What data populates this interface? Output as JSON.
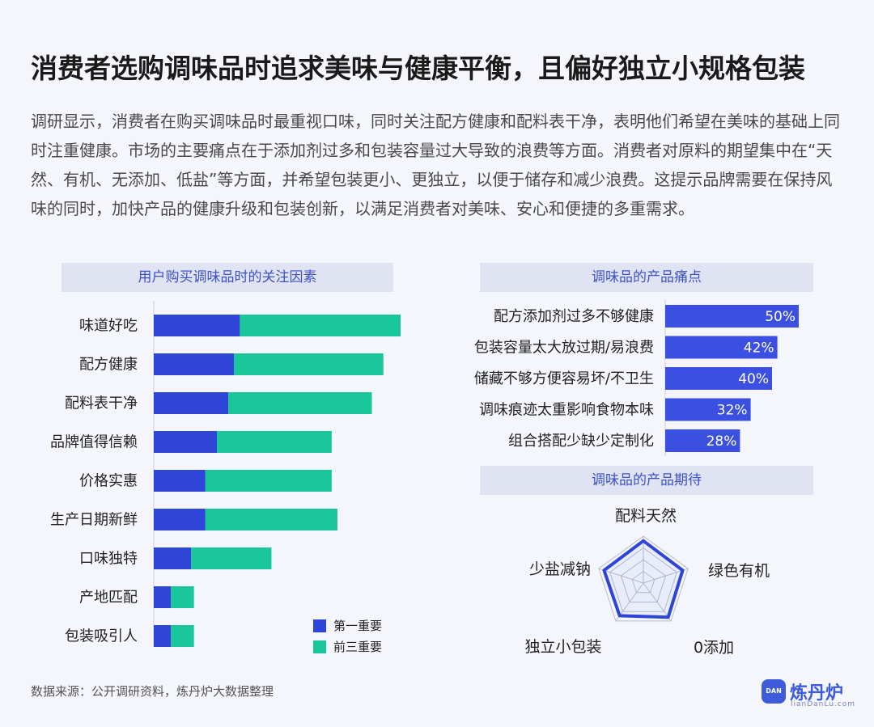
{
  "title": "消费者选购调味品时追求美味与健康平衡，且偏好独立小规格包装",
  "intro": "调研显示，消费者在购买调味品时最重视口味，同时关注配方健康和配料表干净，表明他们希望在美味的基础上同时注重健康。市场的主要痛点在于添加剂过多和包装容量过大导致的浪费等方面。消费者对原料的期望集中在“天然、有机、无添加、低盐”等方面，并希望包装更小、更独立，以便于储存和减少浪费。这提示品牌需要在保持风味的同时，加快产品的健康升级和包装创新，以满足消费者对美味、安心和便捷的多重需求。",
  "source": "数据来源：公开调研资料，炼丹炉大数据整理",
  "logo": {
    "name": "炼丹炉",
    "site": "lianDanLu.com",
    "badge_text": "DAN"
  },
  "colors": {
    "primary_blue": "#2f45d8",
    "teal": "#19c79a",
    "bar_blue": "#3b50e0",
    "header_bg": "#dfe3f2",
    "header_text": "#3d52c4"
  },
  "chart_data": [
    {
      "type": "bar",
      "orientation": "horizontal",
      "stacked": true,
      "title": "用户购买调味品时的关注因素",
      "categories": [
        "味道好吃",
        "配方健康",
        "配料表干净",
        "品牌值得信赖",
        "价格实惠",
        "生产日期新鲜",
        "口味独特",
        "产地匹配",
        "包装吸引人"
      ],
      "series": [
        {
          "name": "第一重要",
          "color": "#2f45d8",
          "values": [
            15,
            14,
            13,
            11,
            9,
            9,
            6.5,
            3,
            3
          ]
        },
        {
          "name": "前三重要",
          "color": "#19c79a",
          "values": [
            43,
            40,
            38,
            31,
            31,
            32,
            20.5,
            7,
            7
          ]
        }
      ],
      "legend_position": "bottom-right",
      "xlim": [
        0,
        60
      ],
      "grid": false
    },
    {
      "type": "bar",
      "orientation": "horizontal",
      "title": "调味品的产品痛点",
      "categories": [
        "配方添加剂过多不够健康",
        "包装容量太大放过期/易浪费",
        "储藏不够方便容易坏/不卫生",
        "调味痕迹太重影响食物本味",
        "组合搭配少缺少定制化"
      ],
      "values": [
        50,
        42,
        40,
        32,
        28
      ],
      "value_labels": [
        "50%",
        "42%",
        "40%",
        "32%",
        "28%"
      ],
      "xlim": [
        0,
        50
      ],
      "grid": false
    },
    {
      "type": "radar",
      "title": "调味品的产品期待",
      "axes": [
        "配料天然",
        "绿色有机",
        "0添加",
        "独立小包装",
        "少盐减钠"
      ],
      "values": [
        0.9,
        0.88,
        0.9,
        0.86,
        0.88
      ],
      "rlim": [
        0,
        1
      ],
      "grid_levels": 4
    }
  ]
}
